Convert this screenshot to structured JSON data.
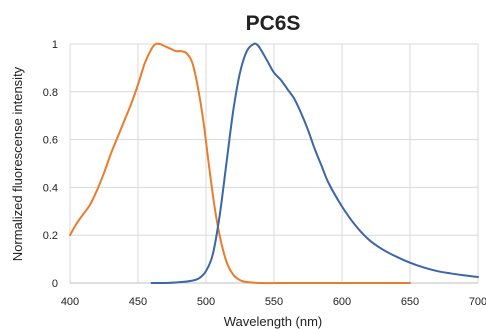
{
  "chart_data": {
    "type": "line",
    "title": "PC6S",
    "xlabel": "Wavelength (nm)",
    "ylabel": "Normalized fluorescense intensity",
    "xlim": [
      400,
      700
    ],
    "ylim": [
      0,
      1
    ],
    "x_ticks": [
      400,
      450,
      500,
      550,
      600,
      650,
      700
    ],
    "y_ticks": [
      0,
      0.2,
      0.4,
      0.6,
      0.8,
      1
    ],
    "x_tick_labels": [
      "400",
      "450",
      "500",
      "550",
      "600",
      "650",
      "700"
    ],
    "y_tick_labels": [
      "0",
      "0.2",
      "0.4",
      "0.6",
      "0.8",
      "1"
    ],
    "grid": true,
    "series": [
      {
        "color": "#E87D2D",
        "x": [
          400,
          405,
          410,
          415,
          420,
          425,
          430,
          435,
          440,
          445,
          450,
          455,
          460,
          463,
          466,
          470,
          474,
          478,
          482,
          486,
          490,
          494,
          498,
          502,
          506,
          510,
          515,
          520,
          525,
          530,
          540,
          560,
          580,
          600,
          620,
          640,
          650
        ],
        "y": [
          0.2,
          0.25,
          0.29,
          0.33,
          0.39,
          0.46,
          0.54,
          0.61,
          0.68,
          0.75,
          0.83,
          0.92,
          0.98,
          1.0,
          1.0,
          0.99,
          0.98,
          0.97,
          0.97,
          0.96,
          0.92,
          0.82,
          0.68,
          0.5,
          0.33,
          0.2,
          0.09,
          0.035,
          0.012,
          0.004,
          0.0,
          0.0,
          0.0,
          0.0,
          0.0,
          0.0,
          0.0
        ]
      },
      {
        "color": "#3B66A8",
        "x": [
          460,
          470,
          480,
          490,
          495,
          500,
          505,
          510,
          515,
          520,
          525,
          530,
          535,
          538,
          541,
          545,
          550,
          555,
          560,
          565,
          570,
          575,
          580,
          585,
          590,
          600,
          610,
          620,
          630,
          640,
          650,
          660,
          670,
          680,
          690,
          700
        ],
        "y": [
          0.0,
          0.0,
          0.003,
          0.01,
          0.02,
          0.05,
          0.12,
          0.28,
          0.5,
          0.72,
          0.88,
          0.97,
          1.0,
          0.995,
          0.97,
          0.93,
          0.88,
          0.85,
          0.81,
          0.77,
          0.71,
          0.64,
          0.56,
          0.49,
          0.42,
          0.32,
          0.24,
          0.18,
          0.14,
          0.11,
          0.085,
          0.065,
          0.05,
          0.04,
          0.032,
          0.025
        ]
      }
    ]
  }
}
